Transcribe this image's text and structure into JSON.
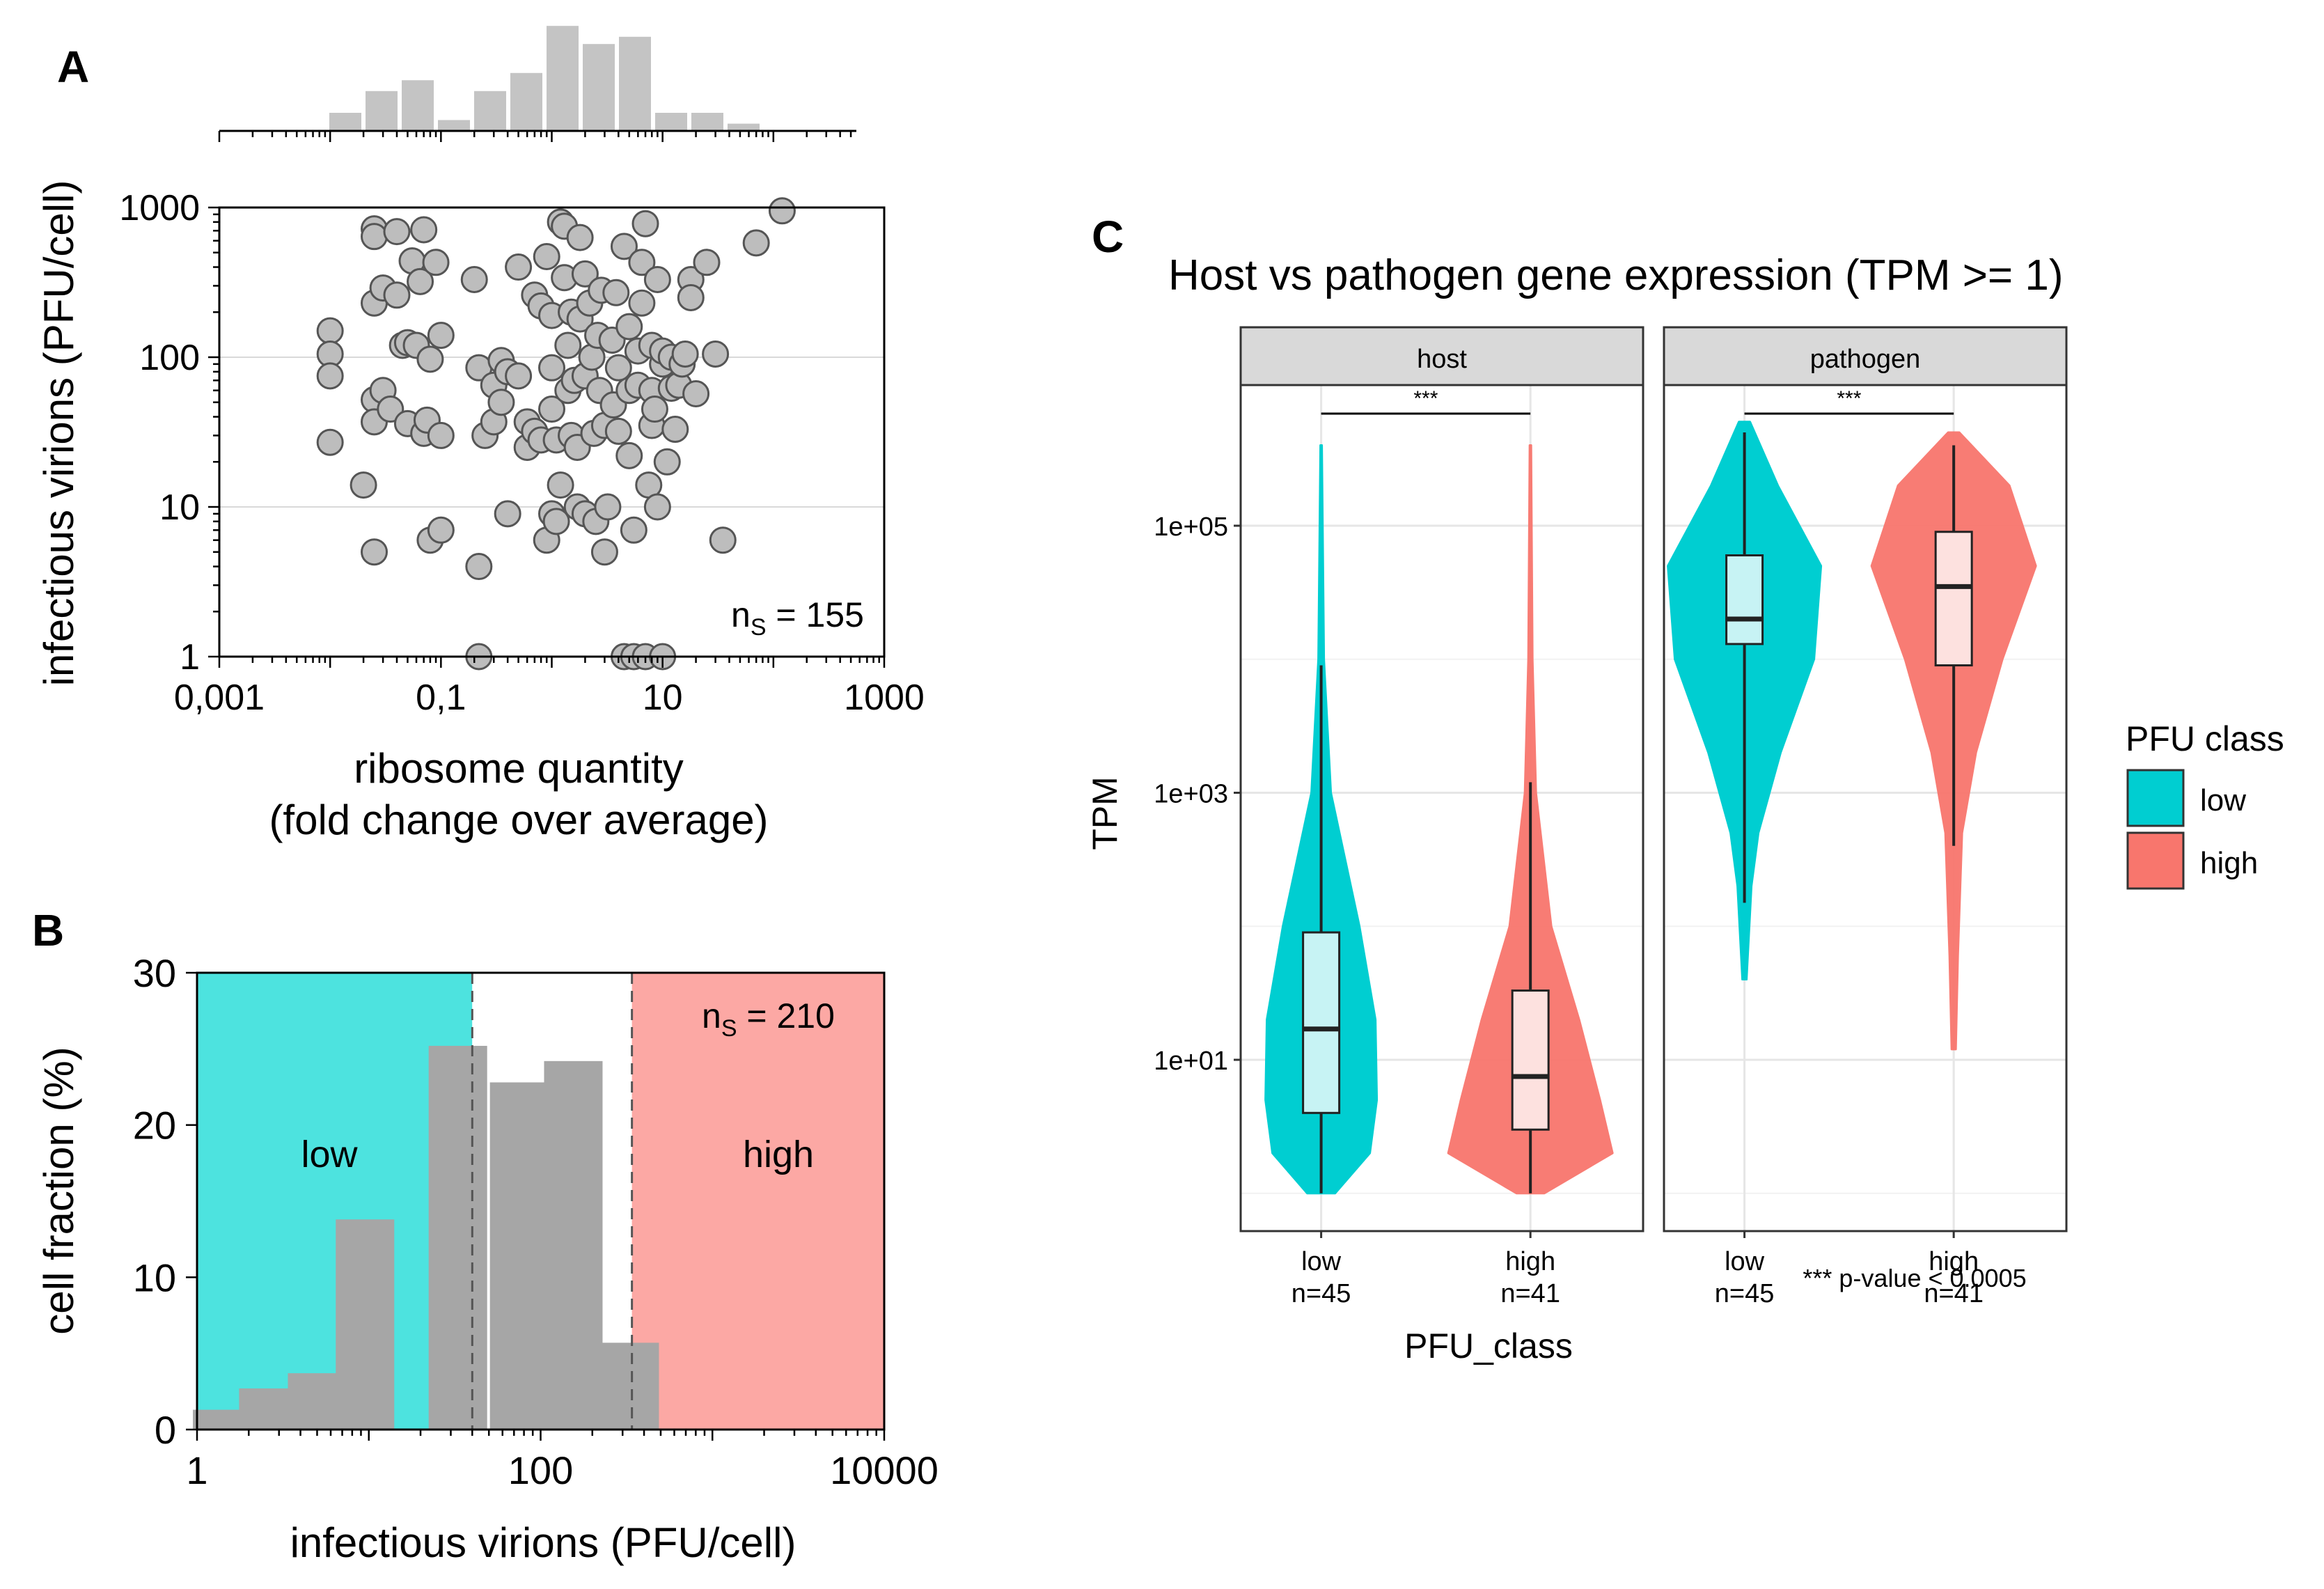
{
  "colors": {
    "low": "#00ced1",
    "high": "#f8766d",
    "low_region": "#4de3df",
    "high_region": "#fca8a4",
    "grey_bar": "#a6a6a6",
    "hist_bar": "#c4c4c4",
    "point": "#bdbdbd",
    "strip": "#d9d9d9",
    "low_box": "#c7f3f4",
    "high_box": "#fde1df"
  },
  "chart_data": [
    {
      "panel": "A",
      "type": "scatter",
      "xlabel": "ribosome quantity",
      "xlabel2": "(fold change over average)",
      "ylabel": "infectious virions (PFU/cell)",
      "xscale": "log",
      "yscale": "log",
      "xlim": [
        0.001,
        1000
      ],
      "ylim": [
        1,
        1000
      ],
      "xticks": [
        "0,001",
        "0,1",
        "10",
        "1000"
      ],
      "yticks": [
        "1",
        "10",
        "100",
        "1000"
      ],
      "annotation": "n",
      "annotation_sub": "S",
      "annotation_value": " = 155",
      "marginal_hist": [
        0.5,
        1.1,
        1.4,
        0.3,
        1.1,
        1.6,
        2.9,
        2.4,
        2.6,
        0.5,
        0.5,
        0.2
      ],
      "points": [
        [
          0.01,
          150
        ],
        [
          0.01,
          105
        ],
        [
          0.01,
          75
        ],
        [
          0.01,
          27
        ],
        [
          0.02,
          14
        ],
        [
          0.025,
          720
        ],
        [
          0.025,
          640
        ],
        [
          0.025,
          230
        ],
        [
          0.025,
          52
        ],
        [
          0.025,
          37
        ],
        [
          0.025,
          5
        ],
        [
          0.03,
          60
        ],
        [
          0.03,
          290
        ],
        [
          0.035,
          45
        ],
        [
          0.04,
          690
        ],
        [
          0.04,
          260
        ],
        [
          0.045,
          120
        ],
        [
          0.05,
          36
        ],
        [
          0.05,
          125
        ],
        [
          0.055,
          440
        ],
        [
          0.06,
          120
        ],
        [
          0.065,
          320
        ],
        [
          0.07,
          710
        ],
        [
          0.07,
          31
        ],
        [
          0.075,
          38
        ],
        [
          0.08,
          6
        ],
        [
          0.08,
          97
        ],
        [
          0.09,
          430
        ],
        [
          0.1,
          140
        ],
        [
          0.1,
          7
        ],
        [
          0.1,
          30
        ],
        [
          0.2,
          330
        ],
        [
          0.22,
          85
        ],
        [
          0.22,
          1
        ],
        [
          0.22,
          4
        ],
        [
          0.25,
          30
        ],
        [
          0.3,
          37
        ],
        [
          0.3,
          65
        ],
        [
          0.35,
          50
        ],
        [
          0.35,
          95
        ],
        [
          0.4,
          9
        ],
        [
          0.4,
          80
        ],
        [
          0.5,
          400
        ],
        [
          0.5,
          75
        ],
        [
          0.6,
          25
        ],
        [
          0.6,
          37
        ],
        [
          0.7,
          32
        ],
        [
          0.7,
          260
        ],
        [
          0.8,
          220
        ],
        [
          0.8,
          28
        ],
        [
          0.9,
          6
        ],
        [
          0.9,
          470
        ],
        [
          1,
          9
        ],
        [
          1,
          45
        ],
        [
          1,
          190
        ],
        [
          1,
          85
        ],
        [
          1.1,
          28
        ],
        [
          1.1,
          8
        ],
        [
          1.2,
          800
        ],
        [
          1.2,
          14
        ],
        [
          1.3,
          750
        ],
        [
          1.3,
          340
        ],
        [
          1.4,
          60
        ],
        [
          1.4,
          120
        ],
        [
          1.5,
          200
        ],
        [
          1.5,
          30
        ],
        [
          1.6,
          70
        ],
        [
          1.7,
          25
        ],
        [
          1.7,
          10
        ],
        [
          1.8,
          180
        ],
        [
          1.8,
          630
        ],
        [
          2,
          9
        ],
        [
          2,
          360
        ],
        [
          2,
          75
        ],
        [
          2.2,
          230
        ],
        [
          2.3,
          100
        ],
        [
          2.4,
          31
        ],
        [
          2.5,
          8
        ],
        [
          2.6,
          140
        ],
        [
          2.7,
          60
        ],
        [
          2.8,
          280
        ],
        [
          3,
          35
        ],
        [
          3,
          5
        ],
        [
          3.2,
          10
        ],
        [
          3.5,
          130
        ],
        [
          3.6,
          48
        ],
        [
          3.8,
          270
        ],
        [
          4,
          32
        ],
        [
          4,
          85
        ],
        [
          4.5,
          550
        ],
        [
          4.5,
          1
        ],
        [
          5,
          160
        ],
        [
          5,
          22
        ],
        [
          5,
          60
        ],
        [
          5.5,
          7
        ],
        [
          5.5,
          1
        ],
        [
          6,
          110
        ],
        [
          6,
          65
        ],
        [
          6.5,
          430
        ],
        [
          6.5,
          230
        ],
        [
          7,
          1
        ],
        [
          7,
          780
        ],
        [
          7.5,
          14
        ],
        [
          8,
          35
        ],
        [
          8,
          120
        ],
        [
          8,
          60
        ],
        [
          8.5,
          45
        ],
        [
          9,
          10
        ],
        [
          9,
          330
        ],
        [
          10,
          90
        ],
        [
          10,
          110
        ],
        [
          10,
          1
        ],
        [
          11,
          20
        ],
        [
          12,
          100
        ],
        [
          12,
          62
        ],
        [
          13,
          33
        ],
        [
          14,
          65
        ],
        [
          15,
          90
        ],
        [
          16,
          105
        ],
        [
          18,
          330
        ],
        [
          18,
          250
        ],
        [
          20,
          57
        ],
        [
          25,
          430
        ],
        [
          30,
          105
        ],
        [
          35,
          6
        ],
        [
          70,
          580
        ],
        [
          120,
          950
        ]
      ]
    },
    {
      "panel": "B",
      "type": "bar",
      "xlabel": "infectious virions (PFU/cell)",
      "ylabel": "cell fraction (%)",
      "xscale": "log",
      "xlim": [
        1,
        10000
      ],
      "ylim": [
        0,
        30
      ],
      "xticks": [
        "1",
        "100",
        "10000"
      ],
      "yticks": [
        "0",
        "10",
        "20",
        "30"
      ],
      "bin_centers": [
        1.4,
        2.6,
        5,
        9.5,
        33,
        75,
        155,
        330
      ],
      "values": [
        1.3,
        2.7,
        3.7,
        13.8,
        25.2,
        22.8,
        24.2,
        5.7
      ],
      "thresholds": [
        40,
        340
      ],
      "regions": [
        "low",
        "high"
      ],
      "annotation": "n",
      "annotation_sub": "S",
      "annotation_value": " = 210"
    },
    {
      "panel": "C",
      "type": "violin",
      "title": "Host vs pathogen gene expression (TPM >= 1)",
      "xlabel": "PFU_class",
      "ylabel": "TPM",
      "yscale": "log",
      "yticks": [
        "1e+01",
        "1e+03",
        "1e+05"
      ],
      "facets": [
        "host",
        "pathogen"
      ],
      "categories": [
        "low",
        "high"
      ],
      "counts": [
        "n=45",
        "n=41"
      ],
      "significance": "***",
      "footnote": "*** p-value < 0.0005",
      "legend_title": "PFU class",
      "legend": [
        "low",
        "high"
      ],
      "groups": [
        {
          "facet": "host",
          "class": "low",
          "min": 1,
          "q1": 4,
          "median": 17,
          "q3": 90,
          "whisker_hi": 9000,
          "max": 400000
        },
        {
          "facet": "host",
          "class": "high",
          "min": 1,
          "q1": 3,
          "median": 7.5,
          "q3": 33,
          "whisker_hi": 1200,
          "max": 400000
        },
        {
          "facet": "pathogen",
          "class": "low",
          "min": 40,
          "q1": 13000,
          "median": 20000,
          "q3": 60000,
          "whisker_hi": 500000,
          "lo_whisker": 150
        },
        {
          "facet": "pathogen",
          "class": "high",
          "min": 12,
          "q1": 9000,
          "median": 35000,
          "q3": 90000,
          "whisker_hi": 400000,
          "lo_whisker": 400
        }
      ]
    }
  ],
  "labels": {
    "panel_a": "A",
    "panel_b": "B",
    "panel_c": "C",
    "region_low": "low",
    "region_high": "high"
  }
}
